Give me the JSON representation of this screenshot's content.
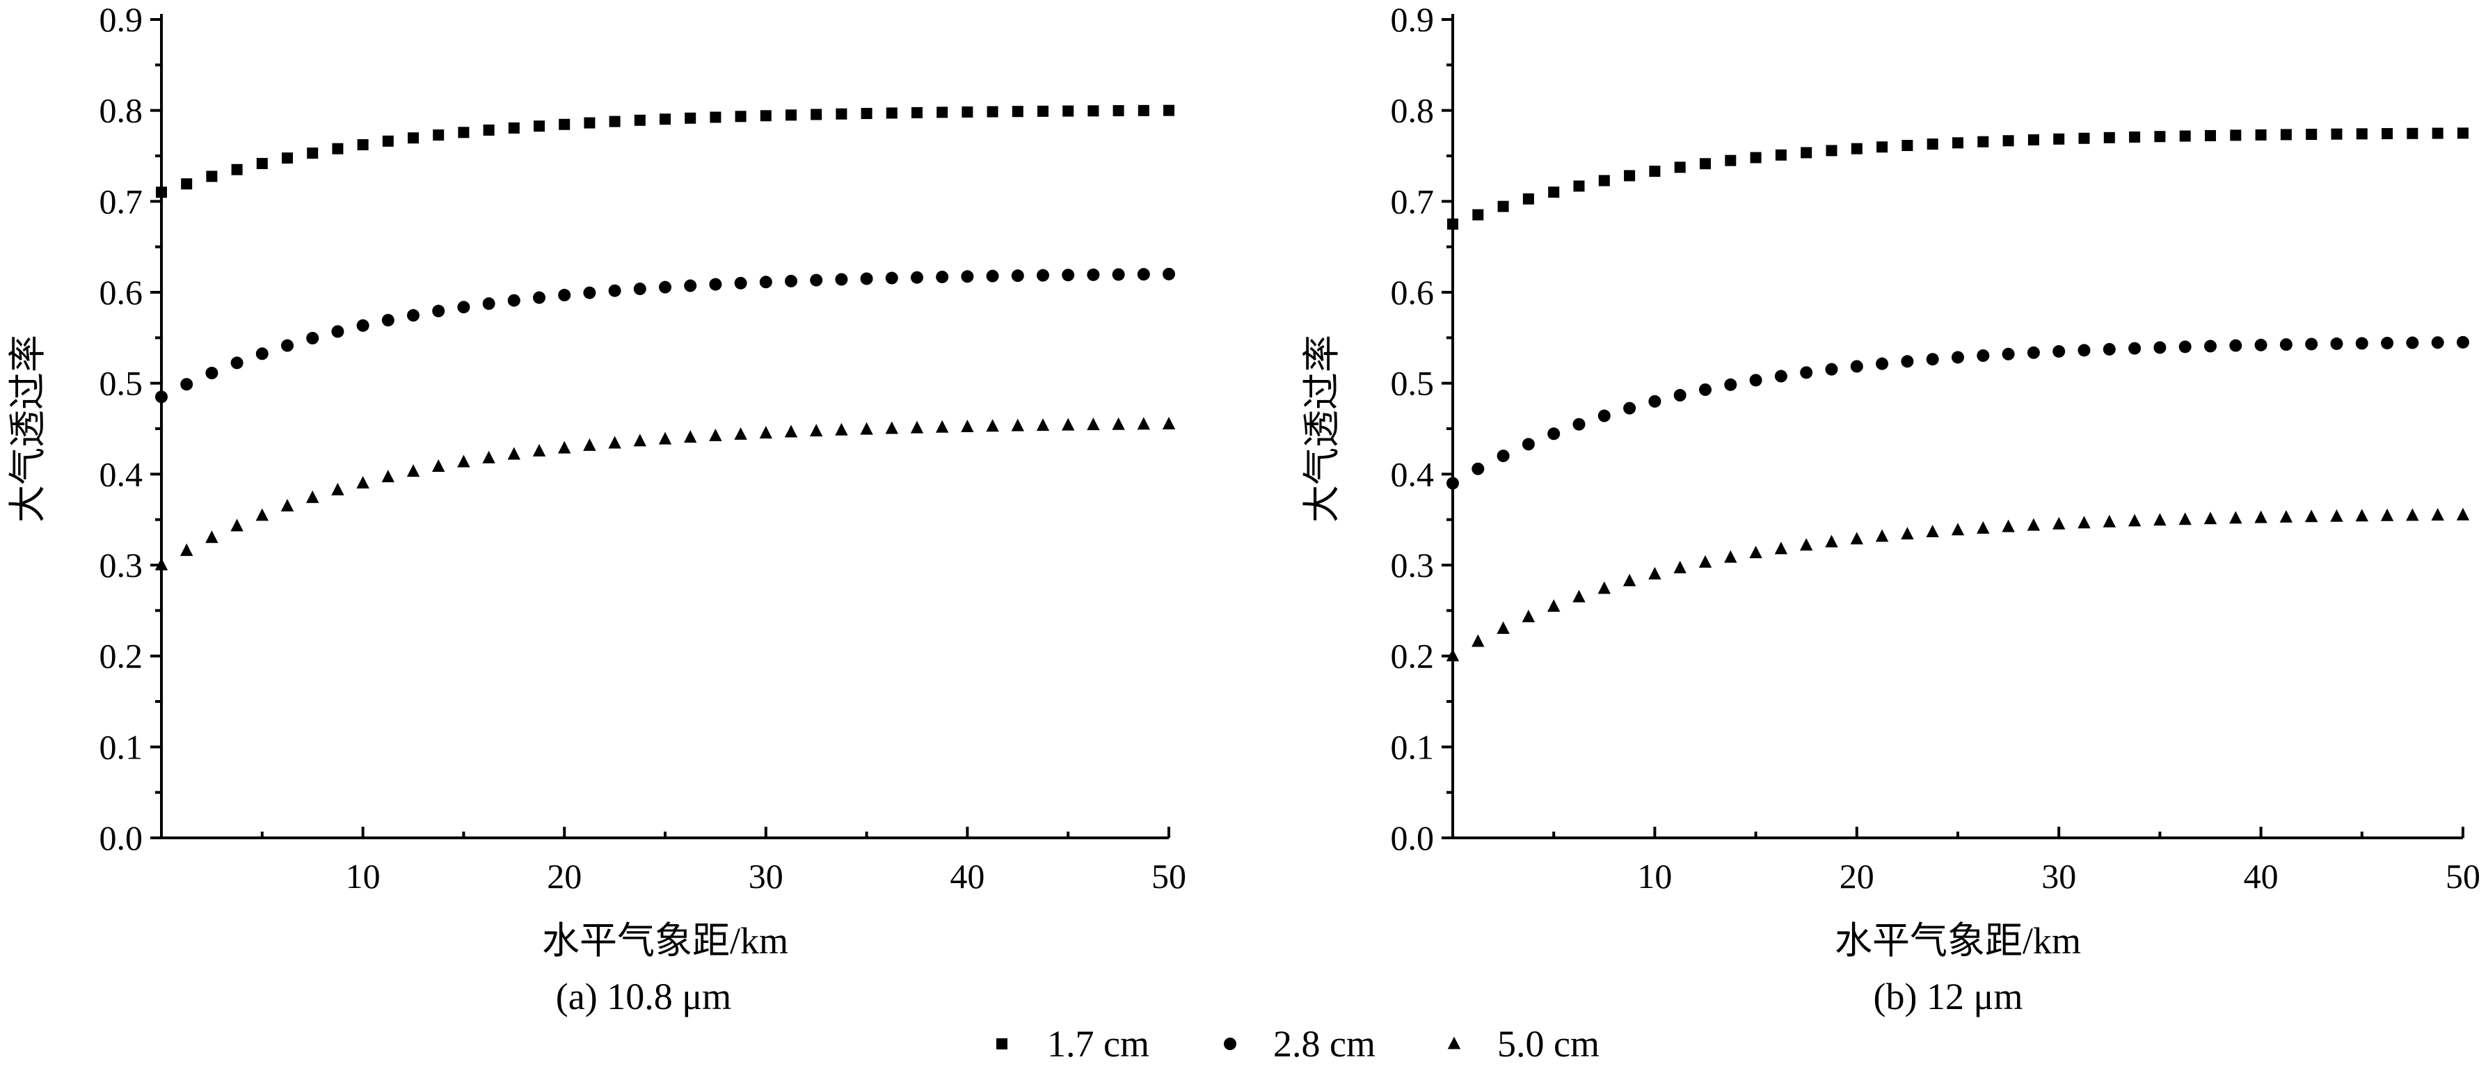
{
  "chart_data": [
    {
      "type": "scatter",
      "caption": "(a) 10.8 μm",
      "xlabel": "水平气象距/km",
      "ylabel": "大气透过率",
      "xlim": [
        0,
        50
      ],
      "ylim": [
        0,
        0.9
      ],
      "xticks": [
        "10",
        "20",
        "30",
        "40",
        "50"
      ],
      "yticks": [
        "0.0",
        "0.1",
        "0.2",
        "0.3",
        "0.4",
        "0.5",
        "0.6",
        "0.7",
        "0.8",
        "0.9"
      ],
      "x_start": 0,
      "x_end": 50,
      "n_points": 41,
      "series": [
        {
          "name": "1.7 cm",
          "marker": "square",
          "y0": 0.71,
          "y_end": 0.8
        },
        {
          "name": "2.8 cm",
          "marker": "circle",
          "y0": 0.485,
          "y_end": 0.62
        },
        {
          "name": "5.0 cm",
          "marker": "triangle",
          "y0": 0.3,
          "y_end": 0.455
        }
      ]
    },
    {
      "type": "scatter",
      "caption": "(b) 12 μm",
      "xlabel": "水平气象距/km",
      "ylabel": "大气透过率",
      "xlim": [
        0,
        50
      ],
      "ylim": [
        0,
        0.9
      ],
      "xticks": [
        "10",
        "20",
        "30",
        "40",
        "50"
      ],
      "yticks": [
        "0.0",
        "0.1",
        "0.2",
        "0.3",
        "0.4",
        "0.5",
        "0.6",
        "0.7",
        "0.8",
        "0.9"
      ],
      "x_start": 0,
      "x_end": 50,
      "n_points": 41,
      "series": [
        {
          "name": "1.7 cm",
          "marker": "square",
          "y0": 0.675,
          "y_end": 0.775
        },
        {
          "name": "2.8 cm",
          "marker": "circle",
          "y0": 0.39,
          "y_end": 0.545
        },
        {
          "name": "5.0 cm",
          "marker": "triangle",
          "y0": 0.2,
          "y_end": 0.355
        }
      ]
    }
  ],
  "legend": [
    {
      "label": "1.7 cm",
      "marker": "square"
    },
    {
      "label": "2.8 cm",
      "marker": "circle"
    },
    {
      "label": "5.0 cm",
      "marker": "triangle"
    }
  ]
}
